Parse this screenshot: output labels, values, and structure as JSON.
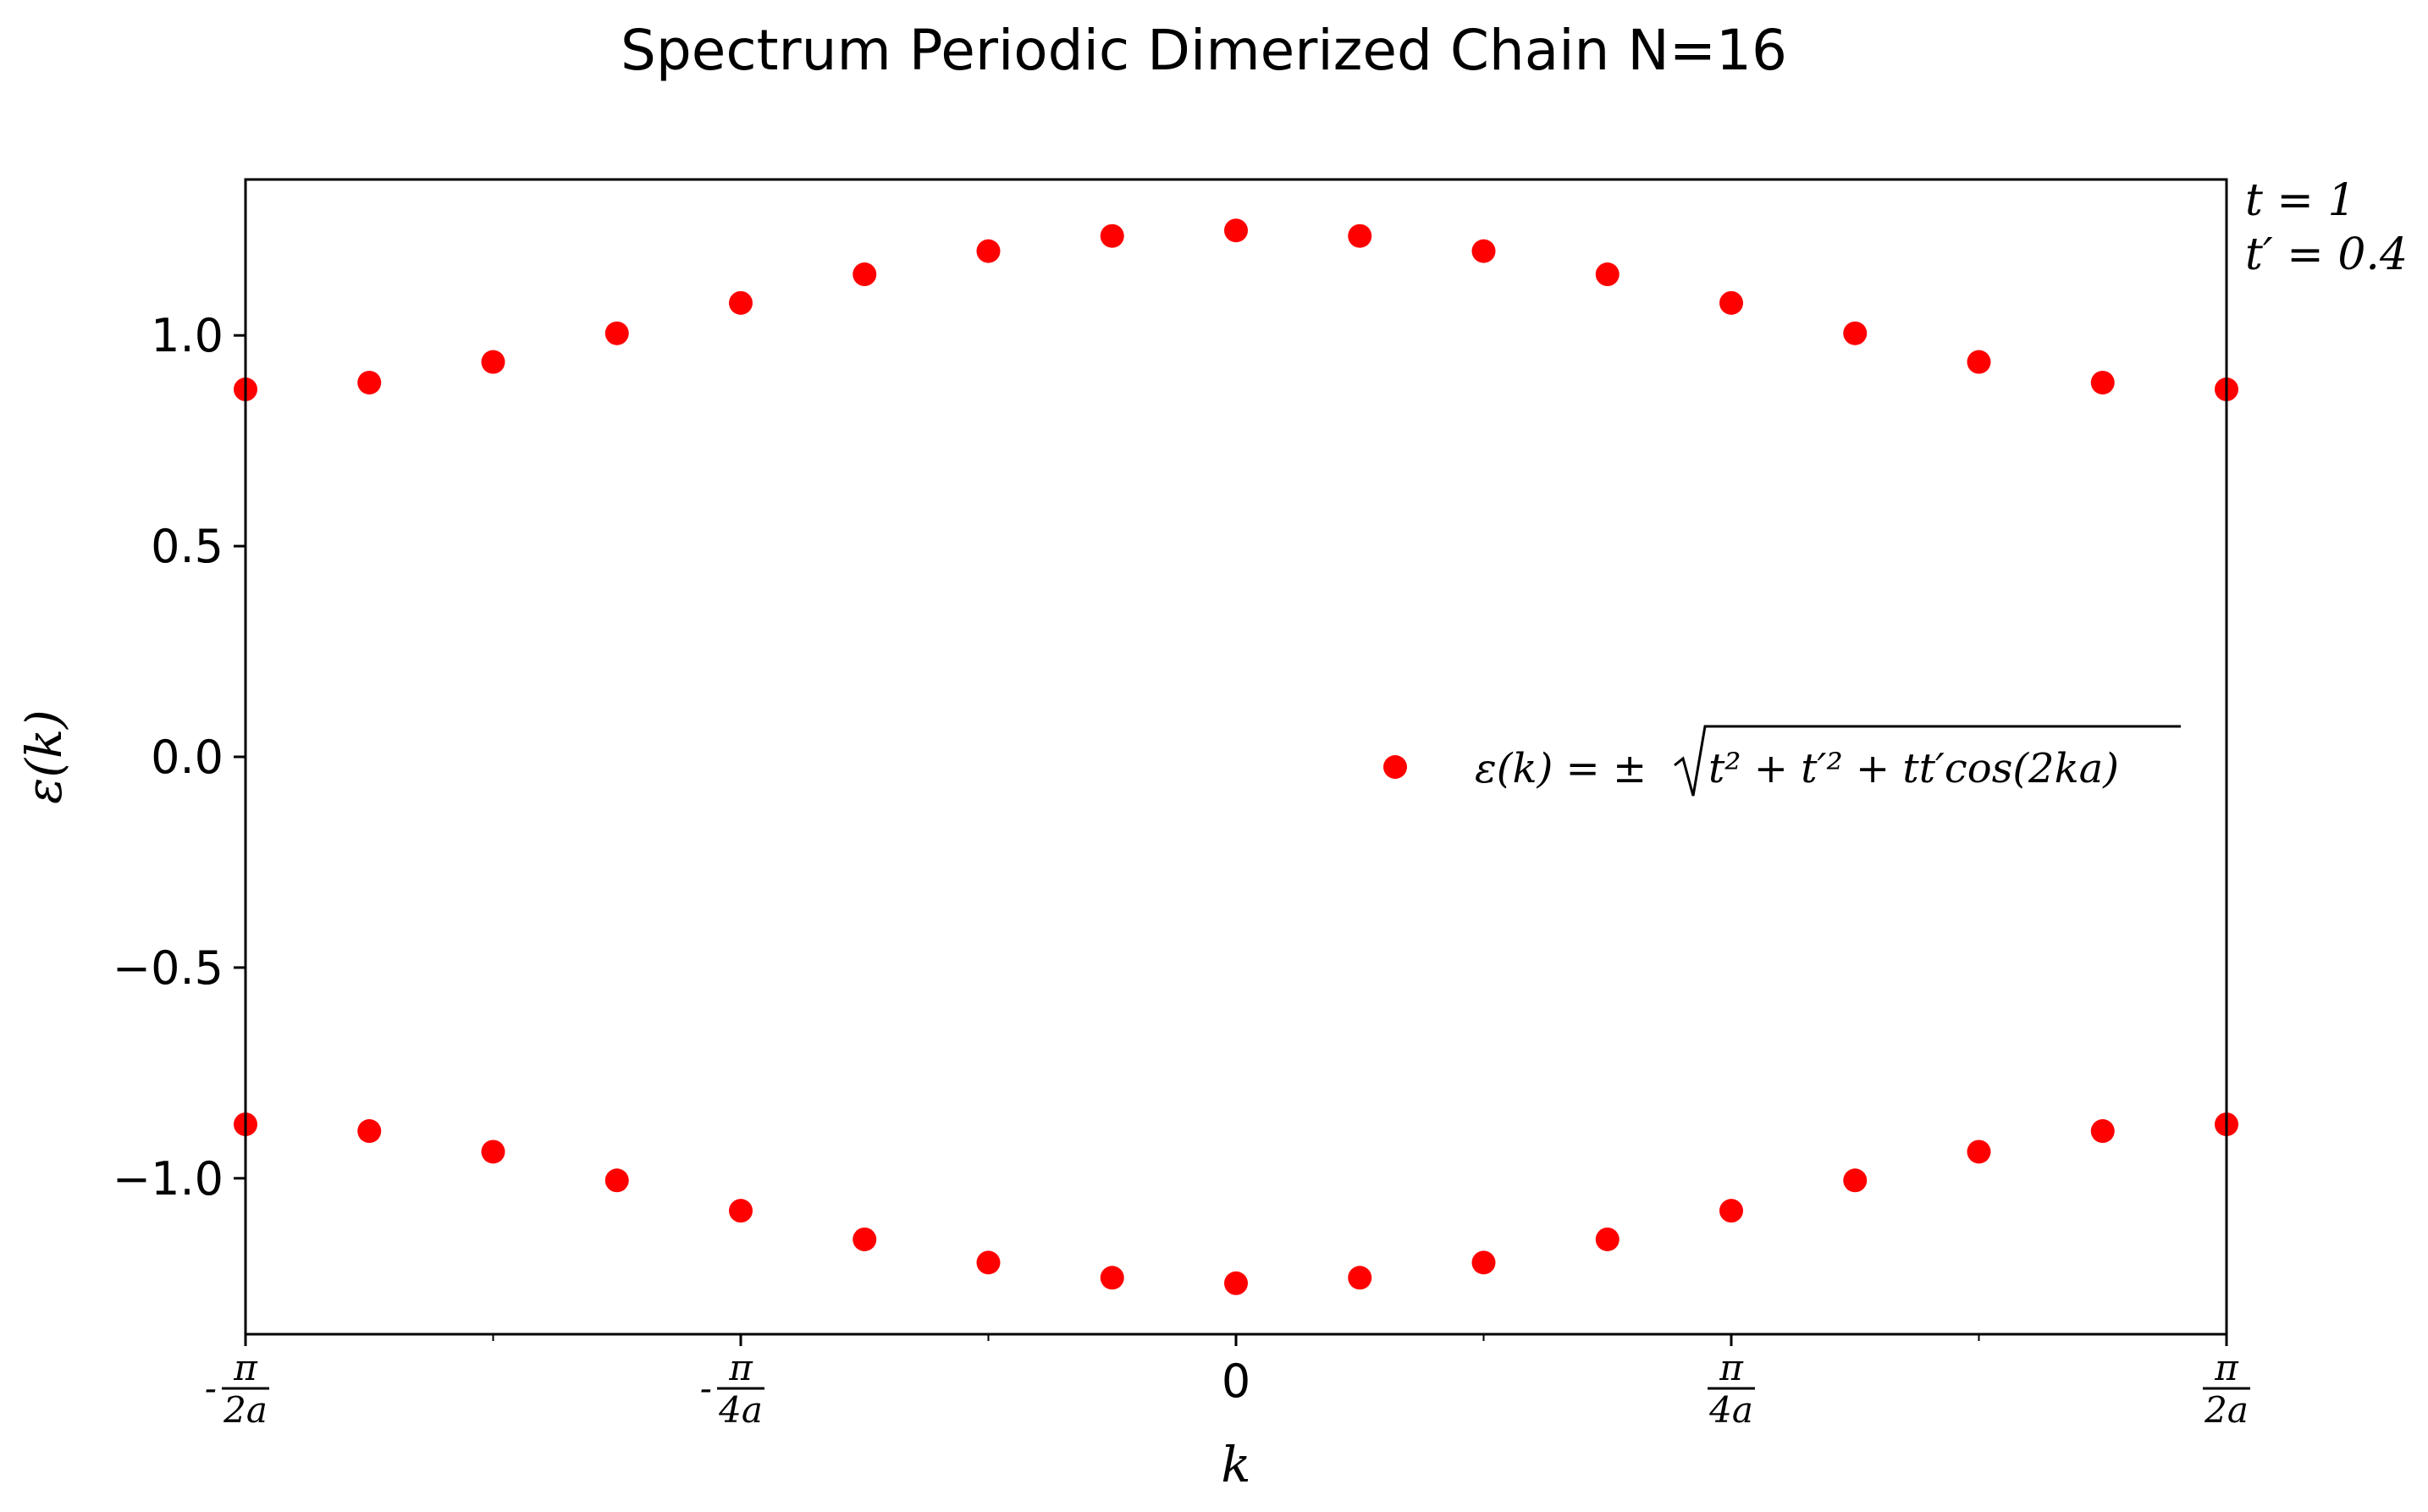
{
  "chart_data": {
    "type": "scatter",
    "title": "Spectrum Periodic Dimerized Chain N=16",
    "xlabel": "k",
    "ylabel": "ε(k)",
    "ylim": [
      -1.37,
      1.37
    ],
    "xlim": [
      -0.5,
      0.5
    ],
    "x_unit": "π/a",
    "yticks": [
      {
        "value": 1.0,
        "label": "1.0"
      },
      {
        "value": 0.5,
        "label": "0.5"
      },
      {
        "value": 0.0,
        "label": "0.0"
      },
      {
        "value": -0.5,
        "label": "−0.5"
      },
      {
        "value": -1.0,
        "label": "−1.0"
      }
    ],
    "xticks": [
      {
        "value": -0.5,
        "sign": "-",
        "num": "π",
        "den": "2a"
      },
      {
        "value": -0.25,
        "sign": "-",
        "num": "π",
        "den": "4a"
      },
      {
        "value": 0.0,
        "label": "0"
      },
      {
        "value": 0.25,
        "sign": "",
        "num": "π",
        "den": "4a"
      },
      {
        "value": 0.5,
        "sign": "",
        "num": "π",
        "den": "2a"
      }
    ],
    "x_minor_ticks": [
      -0.375,
      -0.125,
      0.125,
      0.375
    ],
    "annotation": {
      "line1": "t = 1",
      "line2": "t′ = 0.4"
    },
    "legend": {
      "placement": "center-right",
      "label_prefix": "ε(k) = ±",
      "label_radicand": "t² + t′² + tt′cos(2ka)"
    },
    "marker_color": "#ff0000",
    "series": [
      {
        "name": "ε(k) = ± √(t² + t′² + tt′cos(2ka))",
        "x": [
          -0.5,
          -0.4375,
          -0.375,
          -0.3125,
          -0.25,
          -0.1875,
          -0.125,
          -0.0625,
          0.0,
          0.0625,
          0.125,
          0.1875,
          0.25,
          0.3125,
          0.375,
          0.4375,
          0.5,
          -0.5,
          -0.4375,
          -0.375,
          -0.3125,
          -0.25,
          -0.1875,
          -0.125,
          -0.0625,
          0.0,
          0.0625,
          0.125,
          0.1875,
          0.25,
          0.3125,
          0.375,
          0.4375,
          0.5
        ],
        "y": [
          0.872,
          0.888,
          0.937,
          1.005,
          1.077,
          1.145,
          1.2,
          1.236,
          1.249,
          1.236,
          1.2,
          1.145,
          1.077,
          1.005,
          0.937,
          0.888,
          0.872,
          -0.872,
          -0.888,
          -0.937,
          -1.005,
          -1.077,
          -1.145,
          -1.2,
          -1.236,
          -1.249,
          -1.236,
          -1.2,
          -1.145,
          -1.077,
          -1.005,
          -0.937,
          -0.888,
          -0.872
        ]
      }
    ]
  }
}
